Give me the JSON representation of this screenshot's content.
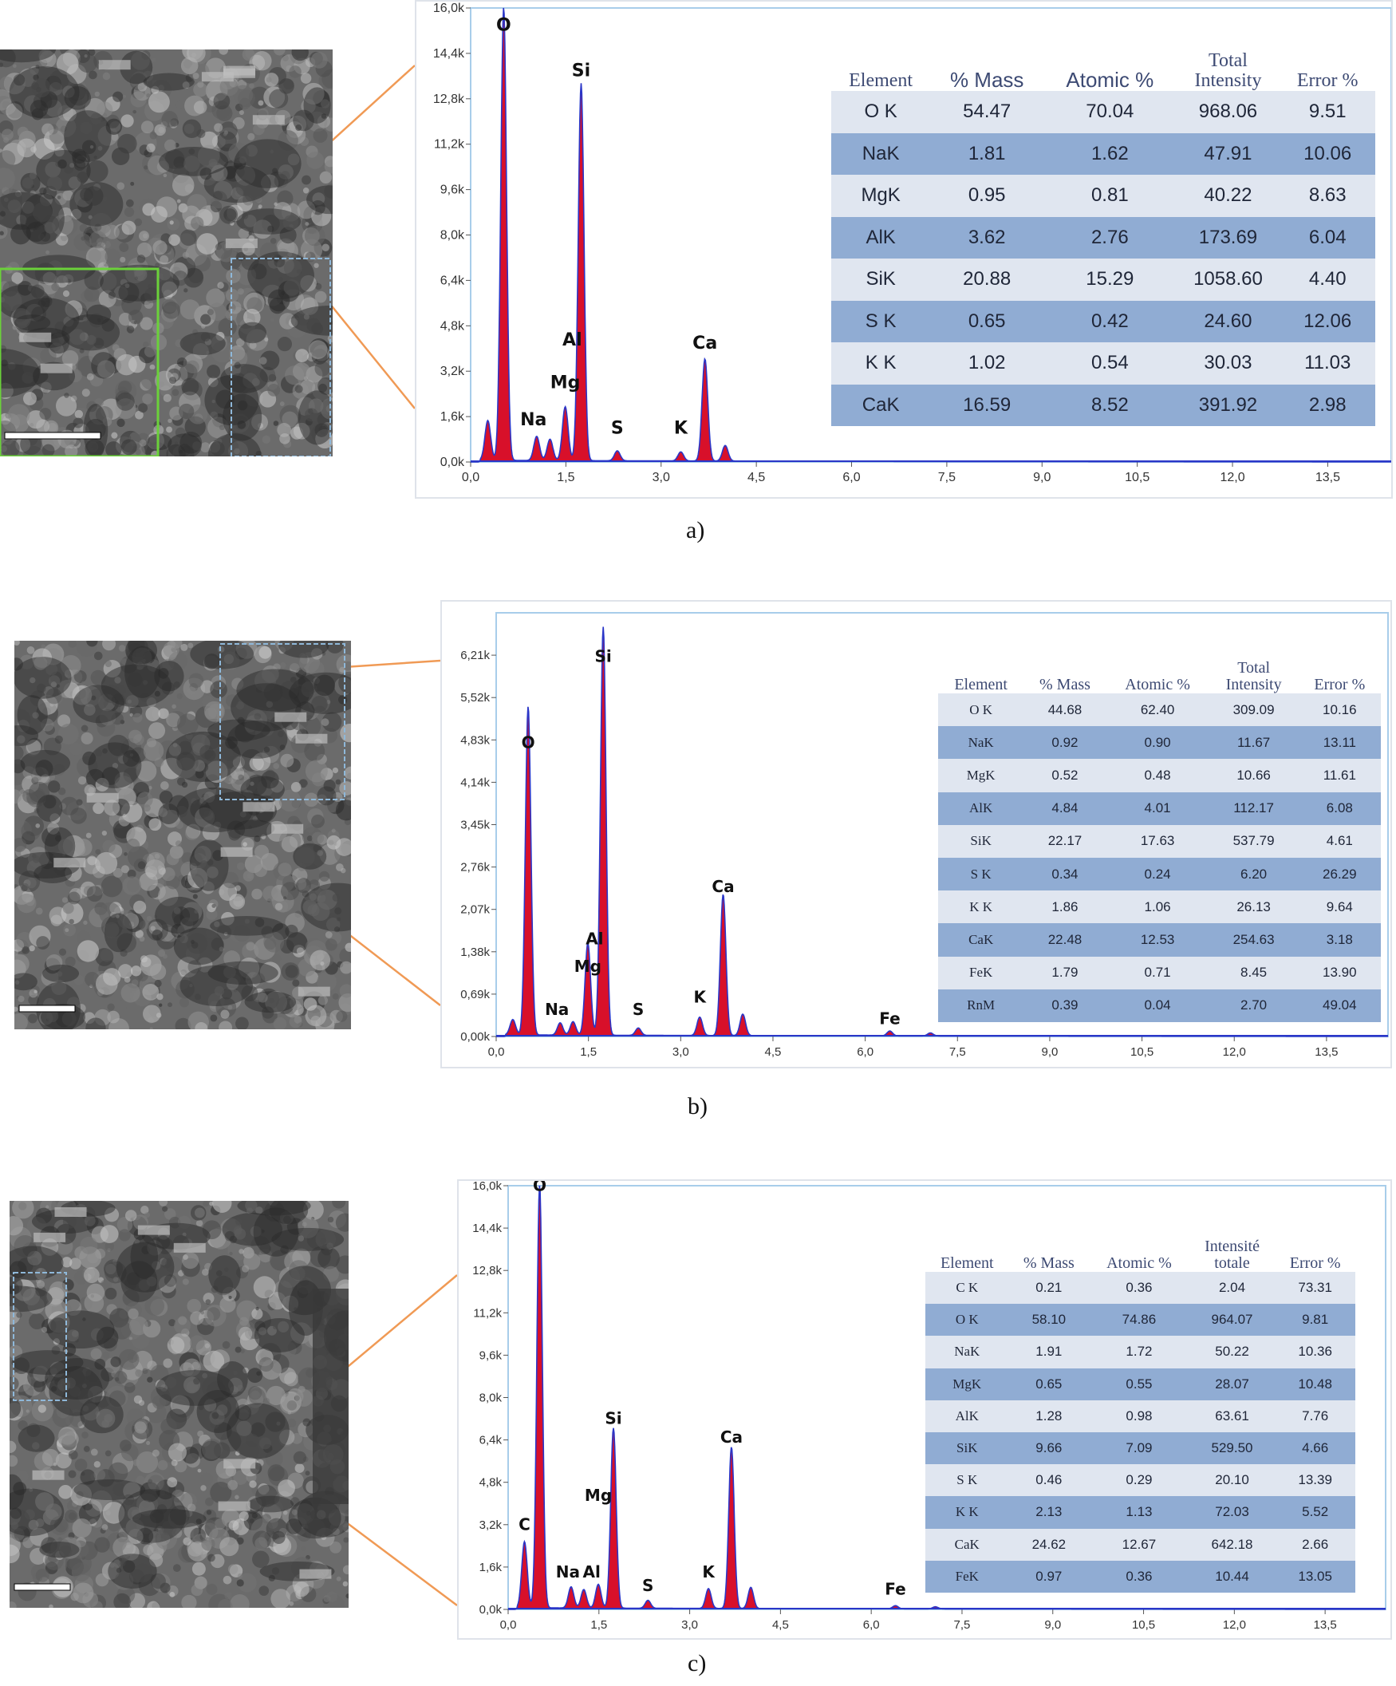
{
  "panels": [
    {
      "caption": "a)",
      "chart_data": {
        "type": "area",
        "xlim": [
          0,
          14.5
        ],
        "ylim": [
          0,
          16.0
        ],
        "x_ticks": [
          "0,0",
          "1,5",
          "3,0",
          "4,5",
          "6,0",
          "7,5",
          "9,0",
          "10,5",
          "12,0",
          "13,5"
        ],
        "y_ticks": [
          "0,0k",
          "1,6k",
          "3,2k",
          "4,8k",
          "6,4k",
          "8,0k",
          "9,6k",
          "11,2k",
          "12,8k",
          "14,4k",
          "16,0k"
        ],
        "peaks": [
          {
            "x": 0.27,
            "y": 1.4
          },
          {
            "x": 0.52,
            "y": 16.0,
            "label": "O"
          },
          {
            "x": 1.04,
            "y": 0.85,
            "label": "Na"
          },
          {
            "x": 1.25,
            "y": 0.75
          },
          {
            "x": 1.49,
            "y": 1.9,
            "label": "Mg"
          },
          {
            "x": 1.74,
            "y": 13.3,
            "label": "Si"
          },
          {
            "x": 2.31,
            "y": 0.35,
            "label": "S"
          },
          {
            "x": 3.31,
            "y": 0.32,
            "label": "K"
          },
          {
            "x": 3.69,
            "y": 3.6,
            "label": "Ca"
          },
          {
            "x": 4.01,
            "y": 0.55
          }
        ],
        "peak_label_positions": {
          "O": 15.2,
          "Si": 13.6,
          "Ca": 4.0,
          "Al": 4.1,
          "Mg": 2.6,
          "Na": 1.3,
          "S": 1.0,
          "K": 1.0
        },
        "extra_labels": [
          {
            "text": "Al",
            "x": 1.6
          }
        ],
        "table": {
          "columns": [
            "Element",
            "% Mass",
            "Atomic %",
            "Total Intensity",
            "Error %"
          ],
          "rows": [
            [
              "O K",
              "54.47",
              "70.04",
              "968.06",
              "9.51"
            ],
            [
              "NaK",
              "1.81",
              "1.62",
              "47.91",
              "10.06"
            ],
            [
              "MgK",
              "0.95",
              "0.81",
              "40.22",
              "8.63"
            ],
            [
              "AlK",
              "3.62",
              "2.76",
              "173.69",
              "6.04"
            ],
            [
              "SiK",
              "20.88",
              "15.29",
              "1058.60",
              "4.40"
            ],
            [
              "S K",
              "0.65",
              "0.42",
              "24.60",
              "12.06"
            ],
            [
              "K K",
              "1.02",
              "0.54",
              "30.03",
              "11.03"
            ],
            [
              "CaK",
              "16.59",
              "8.52",
              "391.92",
              "2.98"
            ]
          ]
        }
      }
    },
    {
      "caption": "b)",
      "chart_data": {
        "type": "area",
        "xlim": [
          0,
          14.5
        ],
        "ylim": [
          0,
          6.9
        ],
        "x_ticks": [
          "0,0",
          "1,5",
          "3,0",
          "4,5",
          "6,0",
          "7,5",
          "9,0",
          "10,5",
          "12,0",
          "13,5"
        ],
        "y_ticks": [
          "0,00k",
          "0,69k",
          "1,38k",
          "2,07k",
          "2,76k",
          "3,45k",
          "4,14k",
          "4,83k",
          "5,52k",
          "6,21k"
        ],
        "peaks": [
          {
            "x": 0.27,
            "y": 0.25
          },
          {
            "x": 0.52,
            "y": 5.35,
            "label": "O"
          },
          {
            "x": 1.04,
            "y": 0.2,
            "label": "Na"
          },
          {
            "x": 1.25,
            "y": 0.22
          },
          {
            "x": 1.49,
            "y": 1.5,
            "label": "Mg"
          },
          {
            "x": 1.74,
            "y": 6.65,
            "label": "Si"
          },
          {
            "x": 2.31,
            "y": 0.12,
            "label": "S"
          },
          {
            "x": 3.31,
            "y": 0.3,
            "label": "K"
          },
          {
            "x": 3.69,
            "y": 2.3,
            "label": "Ca"
          },
          {
            "x": 4.01,
            "y": 0.35
          },
          {
            "x": 6.4,
            "y": 0.08,
            "label": "Fe"
          },
          {
            "x": 7.06,
            "y": 0.05
          }
        ],
        "peak_label_positions": {
          "O": 4.7,
          "Si": 6.1,
          "Ca": 2.35,
          "Al": 1.5,
          "Mg": 1.05,
          "Na": 0.35,
          "S": 0.35,
          "K": 0.55,
          "Fe": 0.2
        },
        "extra_labels": [
          {
            "text": "Al",
            "x": 1.6
          }
        ],
        "table": {
          "columns": [
            "Element",
            "% Mass",
            "Atomic %",
            "Total Intensity",
            "Error %"
          ],
          "rows": [
            [
              "O K",
              "44.68",
              "62.40",
              "309.09",
              "10.16"
            ],
            [
              "NaK",
              "0.92",
              "0.90",
              "11.67",
              "13.11"
            ],
            [
              "MgK",
              "0.52",
              "0.48",
              "10.66",
              "11.61"
            ],
            [
              "AlK",
              "4.84",
              "4.01",
              "112.17",
              "6.08"
            ],
            [
              "SiK",
              "22.17",
              "17.63",
              "537.79",
              "4.61"
            ],
            [
              "S K",
              "0.34",
              "0.24",
              "6.20",
              "26.29"
            ],
            [
              "K K",
              "1.86",
              "1.06",
              "26.13",
              "9.64"
            ],
            [
              "CaK",
              "22.48",
              "12.53",
              "254.63",
              "3.18"
            ],
            [
              "FeK",
              "1.79",
              "0.71",
              "8.45",
              "13.90"
            ],
            [
              "RnM",
              "0.39",
              "0.04",
              "2.70",
              "49.04"
            ]
          ]
        }
      }
    },
    {
      "caption": "c)",
      "chart_data": {
        "type": "area",
        "xlim": [
          0,
          14.5
        ],
        "ylim": [
          0,
          16.0
        ],
        "x_ticks": [
          "0,0",
          "1,5",
          "3,0",
          "4,5",
          "6,0",
          "7,5",
          "9,0",
          "10,5",
          "12,0",
          "13,5"
        ],
        "y_ticks": [
          "0,0k",
          "1,6k",
          "3,2k",
          "4,8k",
          "6,4k",
          "8,0k",
          "9,6k",
          "11,2k",
          "12,8k",
          "14,4k",
          "16,0k"
        ],
        "peaks": [
          {
            "x": 0.27,
            "y": 2.5,
            "label": "C"
          },
          {
            "x": 0.52,
            "y": 16.0,
            "label": "O"
          },
          {
            "x": 1.04,
            "y": 0.8,
            "label": "Na"
          },
          {
            "x": 1.25,
            "y": 0.7
          },
          {
            "x": 1.49,
            "y": 0.9,
            "label": "Mg"
          },
          {
            "x": 1.74,
            "y": 6.8,
            "label": "Si"
          },
          {
            "x": 2.31,
            "y": 0.3,
            "label": "S"
          },
          {
            "x": 3.31,
            "y": 0.75,
            "label": "K"
          },
          {
            "x": 3.69,
            "y": 6.1,
            "label": "Ca"
          },
          {
            "x": 4.01,
            "y": 0.8
          },
          {
            "x": 6.4,
            "y": 0.12,
            "label": "Fe"
          },
          {
            "x": 7.06,
            "y": 0.08
          }
        ],
        "peak_label_positions": {
          "C": 3.0,
          "O": 15.8,
          "Si": 7.0,
          "Ca": 6.3,
          "Al": 1.2,
          "Mg": 4.1,
          "Na": 1.2,
          "S": 0.7,
          "K": 1.2,
          "Fe": 0.55
        },
        "extra_labels": [
          {
            "text": "Al",
            "x": 1.38
          }
        ],
        "table": {
          "columns": [
            "Element",
            "% Mass",
            "Atomic %",
            "Intensité totale",
            "Error %"
          ],
          "rows": [
            [
              "C K",
              "0.21",
              "0.36",
              "2.04",
              "73.31"
            ],
            [
              "O K",
              "58.10",
              "74.86",
              "964.07",
              "9.81"
            ],
            [
              "NaK",
              "1.91",
              "1.72",
              "50.22",
              "10.36"
            ],
            [
              "MgK",
              "0.65",
              "0.55",
              "28.07",
              "10.48"
            ],
            [
              "AlK",
              "1.28",
              "0.98",
              "63.61",
              "7.76"
            ],
            [
              "SiK",
              "9.66",
              "7.09",
              "529.50",
              "4.66"
            ],
            [
              "S K",
              "0.46",
              "0.29",
              "20.10",
              "13.39"
            ],
            [
              "K K",
              "2.13",
              "1.13",
              "72.03",
              "5.52"
            ],
            [
              "CaK",
              "24.62",
              "12.67",
              "642.18",
              "2.66"
            ],
            [
              "FeK",
              "0.97",
              "0.36",
              "10.44",
              "13.05"
            ]
          ]
        }
      }
    }
  ]
}
